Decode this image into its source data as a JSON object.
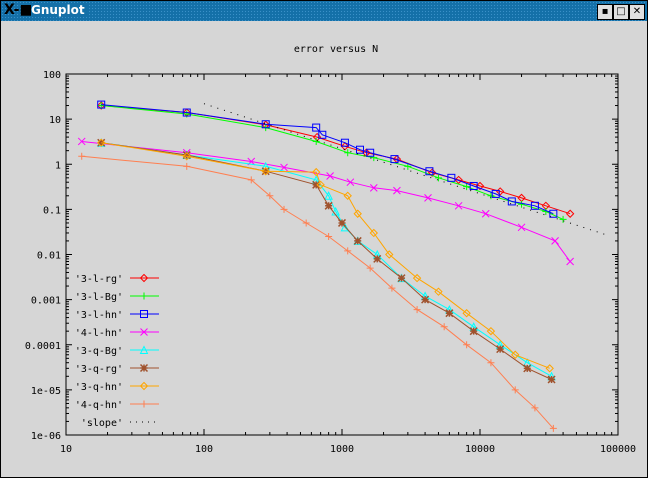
{
  "window": {
    "title": "Gnuplot",
    "logo": "X-■",
    "buttons": [
      "minimize",
      "maximize",
      "close"
    ]
  },
  "chart_data": {
    "type": "line",
    "title": "error versus N",
    "xlabel": "",
    "ylabel": "",
    "xscale": "log",
    "yscale": "log",
    "xlim": [
      10,
      100000
    ],
    "ylim": [
      1e-06,
      100
    ],
    "xticks": [
      "10",
      "100",
      "1000",
      "10000",
      "100000"
    ],
    "yticks": [
      "100",
      "10",
      "1",
      "0.1",
      "0.01",
      "0.001",
      "0.0001",
      "1e-05",
      "1e-06"
    ],
    "legend_position": "bottom-left",
    "series": [
      {
        "name": "'3-l-rg'",
        "color": "#ff0000",
        "marker": "diamond",
        "points": [
          [
            18,
            20
          ],
          [
            75,
            14
          ],
          [
            280,
            7.5
          ],
          [
            660,
            4
          ],
          [
            1050,
            2.5
          ],
          [
            1500,
            1.8
          ],
          [
            2500,
            1.3
          ],
          [
            4500,
            0.65
          ],
          [
            7000,
            0.45
          ],
          [
            10000,
            0.33
          ],
          [
            14000,
            0.25
          ],
          [
            20000,
            0.18
          ],
          [
            30000,
            0.12
          ],
          [
            45000,
            0.08
          ]
        ]
      },
      {
        "name": "'3-l-Bg'",
        "color": "#00ff00",
        "marker": "plus",
        "points": [
          [
            18,
            20
          ],
          [
            75,
            13
          ],
          [
            280,
            6.5
          ],
          [
            650,
            3.2
          ],
          [
            1100,
            1.8
          ],
          [
            1700,
            1.4
          ],
          [
            3000,
            0.9
          ],
          [
            5000,
            0.5
          ],
          [
            8000,
            0.32
          ],
          [
            12000,
            0.2
          ],
          [
            20000,
            0.13
          ],
          [
            30000,
            0.09
          ],
          [
            40000,
            0.06
          ]
        ]
      },
      {
        "name": "'3-l-hn'",
        "color": "#0000ff",
        "marker": "square",
        "points": [
          [
            18,
            21
          ],
          [
            75,
            14
          ],
          [
            280,
            7.7
          ],
          [
            650,
            6.5
          ],
          [
            720,
            4.5
          ],
          [
            1050,
            3
          ],
          [
            1350,
            2.1
          ],
          [
            1600,
            1.8
          ],
          [
            2400,
            1.3
          ],
          [
            4300,
            0.7
          ],
          [
            6200,
            0.5
          ],
          [
            9000,
            0.33
          ],
          [
            13000,
            0.22
          ],
          [
            17000,
            0.15
          ],
          [
            25000,
            0.12
          ],
          [
            34000,
            0.08
          ]
        ]
      },
      {
        "name": "'4-l-hn'",
        "color": "#ff00ff",
        "marker": "cross",
        "points": [
          [
            13,
            3.2
          ],
          [
            75,
            1.8
          ],
          [
            220,
            1.15
          ],
          [
            380,
            0.85
          ],
          [
            820,
            0.55
          ],
          [
            1150,
            0.4
          ],
          [
            1700,
            0.3
          ],
          [
            2500,
            0.26
          ],
          [
            4200,
            0.18
          ],
          [
            7000,
            0.12
          ],
          [
            11000,
            0.08
          ],
          [
            20000,
            0.04
          ],
          [
            35000,
            0.02
          ],
          [
            45000,
            0.007
          ]
        ]
      },
      {
        "name": "'3-q-Bg'",
        "color": "#00ffff",
        "marker": "triangle",
        "points": [
          [
            18,
            3
          ],
          [
            75,
            1.6
          ],
          [
            280,
            0.9
          ],
          [
            650,
            0.45
          ],
          [
            800,
            0.2
          ],
          [
            900,
            0.09
          ],
          [
            1050,
            0.04
          ],
          [
            1300,
            0.02
          ],
          [
            1800,
            0.01
          ],
          [
            2700,
            0.003
          ],
          [
            4000,
            0.0012
          ],
          [
            6000,
            0.0006
          ],
          [
            9000,
            0.00025
          ],
          [
            14000,
            0.0001
          ],
          [
            22000,
            4e-05
          ],
          [
            33000,
            2e-05
          ]
        ]
      },
      {
        "name": "'3-q-rg'",
        "color": "#a0522d",
        "marker": "star",
        "points": [
          [
            18,
            3
          ],
          [
            75,
            1.6
          ],
          [
            280,
            0.7
          ],
          [
            650,
            0.35
          ],
          [
            800,
            0.12
          ],
          [
            1000,
            0.05
          ],
          [
            1300,
            0.02
          ],
          [
            1800,
            0.008
          ],
          [
            2700,
            0.003
          ],
          [
            4000,
            0.001
          ],
          [
            6000,
            0.0005
          ],
          [
            9000,
            0.0002
          ],
          [
            14000,
            8e-05
          ],
          [
            22000,
            3e-05
          ],
          [
            33000,
            1.7e-05
          ]
        ]
      },
      {
        "name": "'3-q-hn'",
        "color": "#ffa500",
        "marker": "diamond",
        "points": [
          [
            18,
            3
          ],
          [
            75,
            1.5
          ],
          [
            280,
            0.7
          ],
          [
            650,
            0.67
          ],
          [
            700,
            0.35
          ],
          [
            1100,
            0.2
          ],
          [
            1300,
            0.08
          ],
          [
            1700,
            0.03
          ],
          [
            2200,
            0.01
          ],
          [
            3500,
            0.003
          ],
          [
            5000,
            0.0015
          ],
          [
            8000,
            0.0005
          ],
          [
            12000,
            0.0002
          ],
          [
            18000,
            6e-05
          ],
          [
            32000,
            3e-05
          ]
        ]
      },
      {
        "name": "'4-q-hn'",
        "color": "#ff7f50",
        "marker": "plus",
        "points": [
          [
            13,
            1.5
          ],
          [
            75,
            0.9
          ],
          [
            220,
            0.45
          ],
          [
            300,
            0.2
          ],
          [
            380,
            0.1
          ],
          [
            550,
            0.05
          ],
          [
            800,
            0.025
          ],
          [
            1100,
            0.012
          ],
          [
            1600,
            0.005
          ],
          [
            2300,
            0.0018
          ],
          [
            3500,
            0.0006
          ],
          [
            5500,
            0.00025
          ],
          [
            8000,
            0.0001
          ],
          [
            12000,
            4e-05
          ],
          [
            18000,
            1e-05
          ],
          [
            25000,
            4e-06
          ],
          [
            34000,
            1.4e-06
          ]
        ]
      },
      {
        "name": "'slope'",
        "color": "#000000",
        "marker": "none",
        "dotted": true,
        "points": [
          [
            100,
            22
          ],
          [
            80000,
            0.028
          ]
        ]
      }
    ]
  }
}
